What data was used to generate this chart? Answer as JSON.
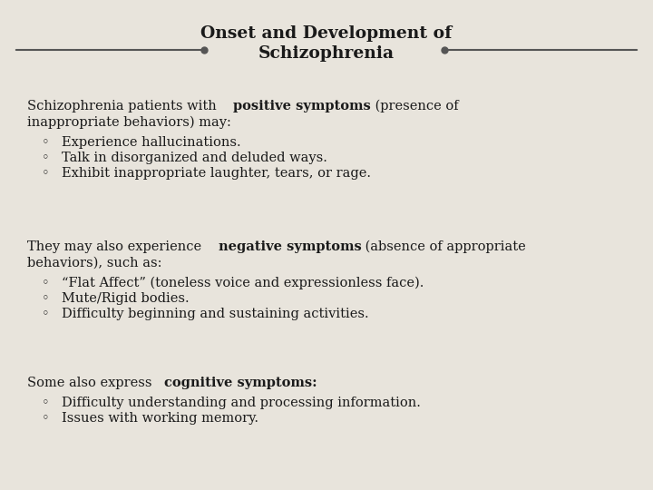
{
  "title_line1": "Onset and Development of",
  "title_line2": "Schizophrenia",
  "bg_color": "#e8e4dc",
  "title_color": "#1a1a1a",
  "text_color": "#1a1a1a",
  "line_color": "#555555",
  "title_fontsize": 13.5,
  "body_fontsize": 10.5,
  "bullet": "◦",
  "sections": [
    {
      "parts": [
        {
          "text": "Schizophrenia patients with    ",
          "bold": false
        },
        {
          "text": "positive symptoms",
          "bold": true
        },
        {
          "text": " (presence of",
          "bold": false
        }
      ],
      "line2": "inappropriate behaviors) may:",
      "bullets": [
        "Experience hallucinations.",
        "Talk in disorganized and deluded ways.",
        "Exhibit inappropriate laughter, tears, or rage."
      ]
    },
    {
      "parts": [
        {
          "text": "They may also experience    ",
          "bold": false
        },
        {
          "text": "negative symptoms",
          "bold": true
        },
        {
          "text": " (absence of appropriate",
          "bold": false
        }
      ],
      "line2": "behaviors), such as:",
      "bullets": [
        "“Flat Affect” (toneless voice and expressionless face).",
        "Mute/Rigid bodies.",
        "Difficulty beginning and sustaining activities."
      ]
    },
    {
      "parts": [
        {
          "text": "Some also express   ",
          "bold": false
        },
        {
          "text": "cognitive symptoms:",
          "bold": true
        }
      ],
      "line2": "",
      "bullets": [
        "Difficulty understanding and processing information.",
        "Issues with working memory."
      ]
    }
  ]
}
